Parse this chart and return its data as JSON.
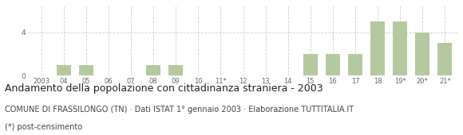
{
  "categories": [
    "2003",
    "04",
    "05",
    "06",
    "07",
    "08",
    "09",
    "10",
    "11*",
    "12",
    "13",
    "14",
    "15",
    "16",
    "17",
    "18",
    "19*",
    "20*",
    "21*"
  ],
  "values": [
    0,
    1,
    1,
    0,
    0,
    1,
    1,
    0,
    0,
    0,
    0,
    0,
    2,
    2,
    2,
    5,
    5,
    4,
    3
  ],
  "bar_color": "#b5c9a0",
  "background_color": "#ffffff",
  "grid_color": "#cccccc",
  "yticks": [
    0,
    4
  ],
  "ylim": [
    0,
    6.5
  ],
  "title": "Andamento della popolazione con cittadinanza straniera - 2003",
  "subtitle": "COMUNE DI FRASSILONGO (TN) · Dati ISTAT 1° gennaio 2003 · Elaborazione TUTTITALIA.IT",
  "footnote": "(*) post-censimento",
  "title_fontsize": 9.0,
  "subtitle_fontsize": 7.0,
  "footnote_fontsize": 7.0
}
